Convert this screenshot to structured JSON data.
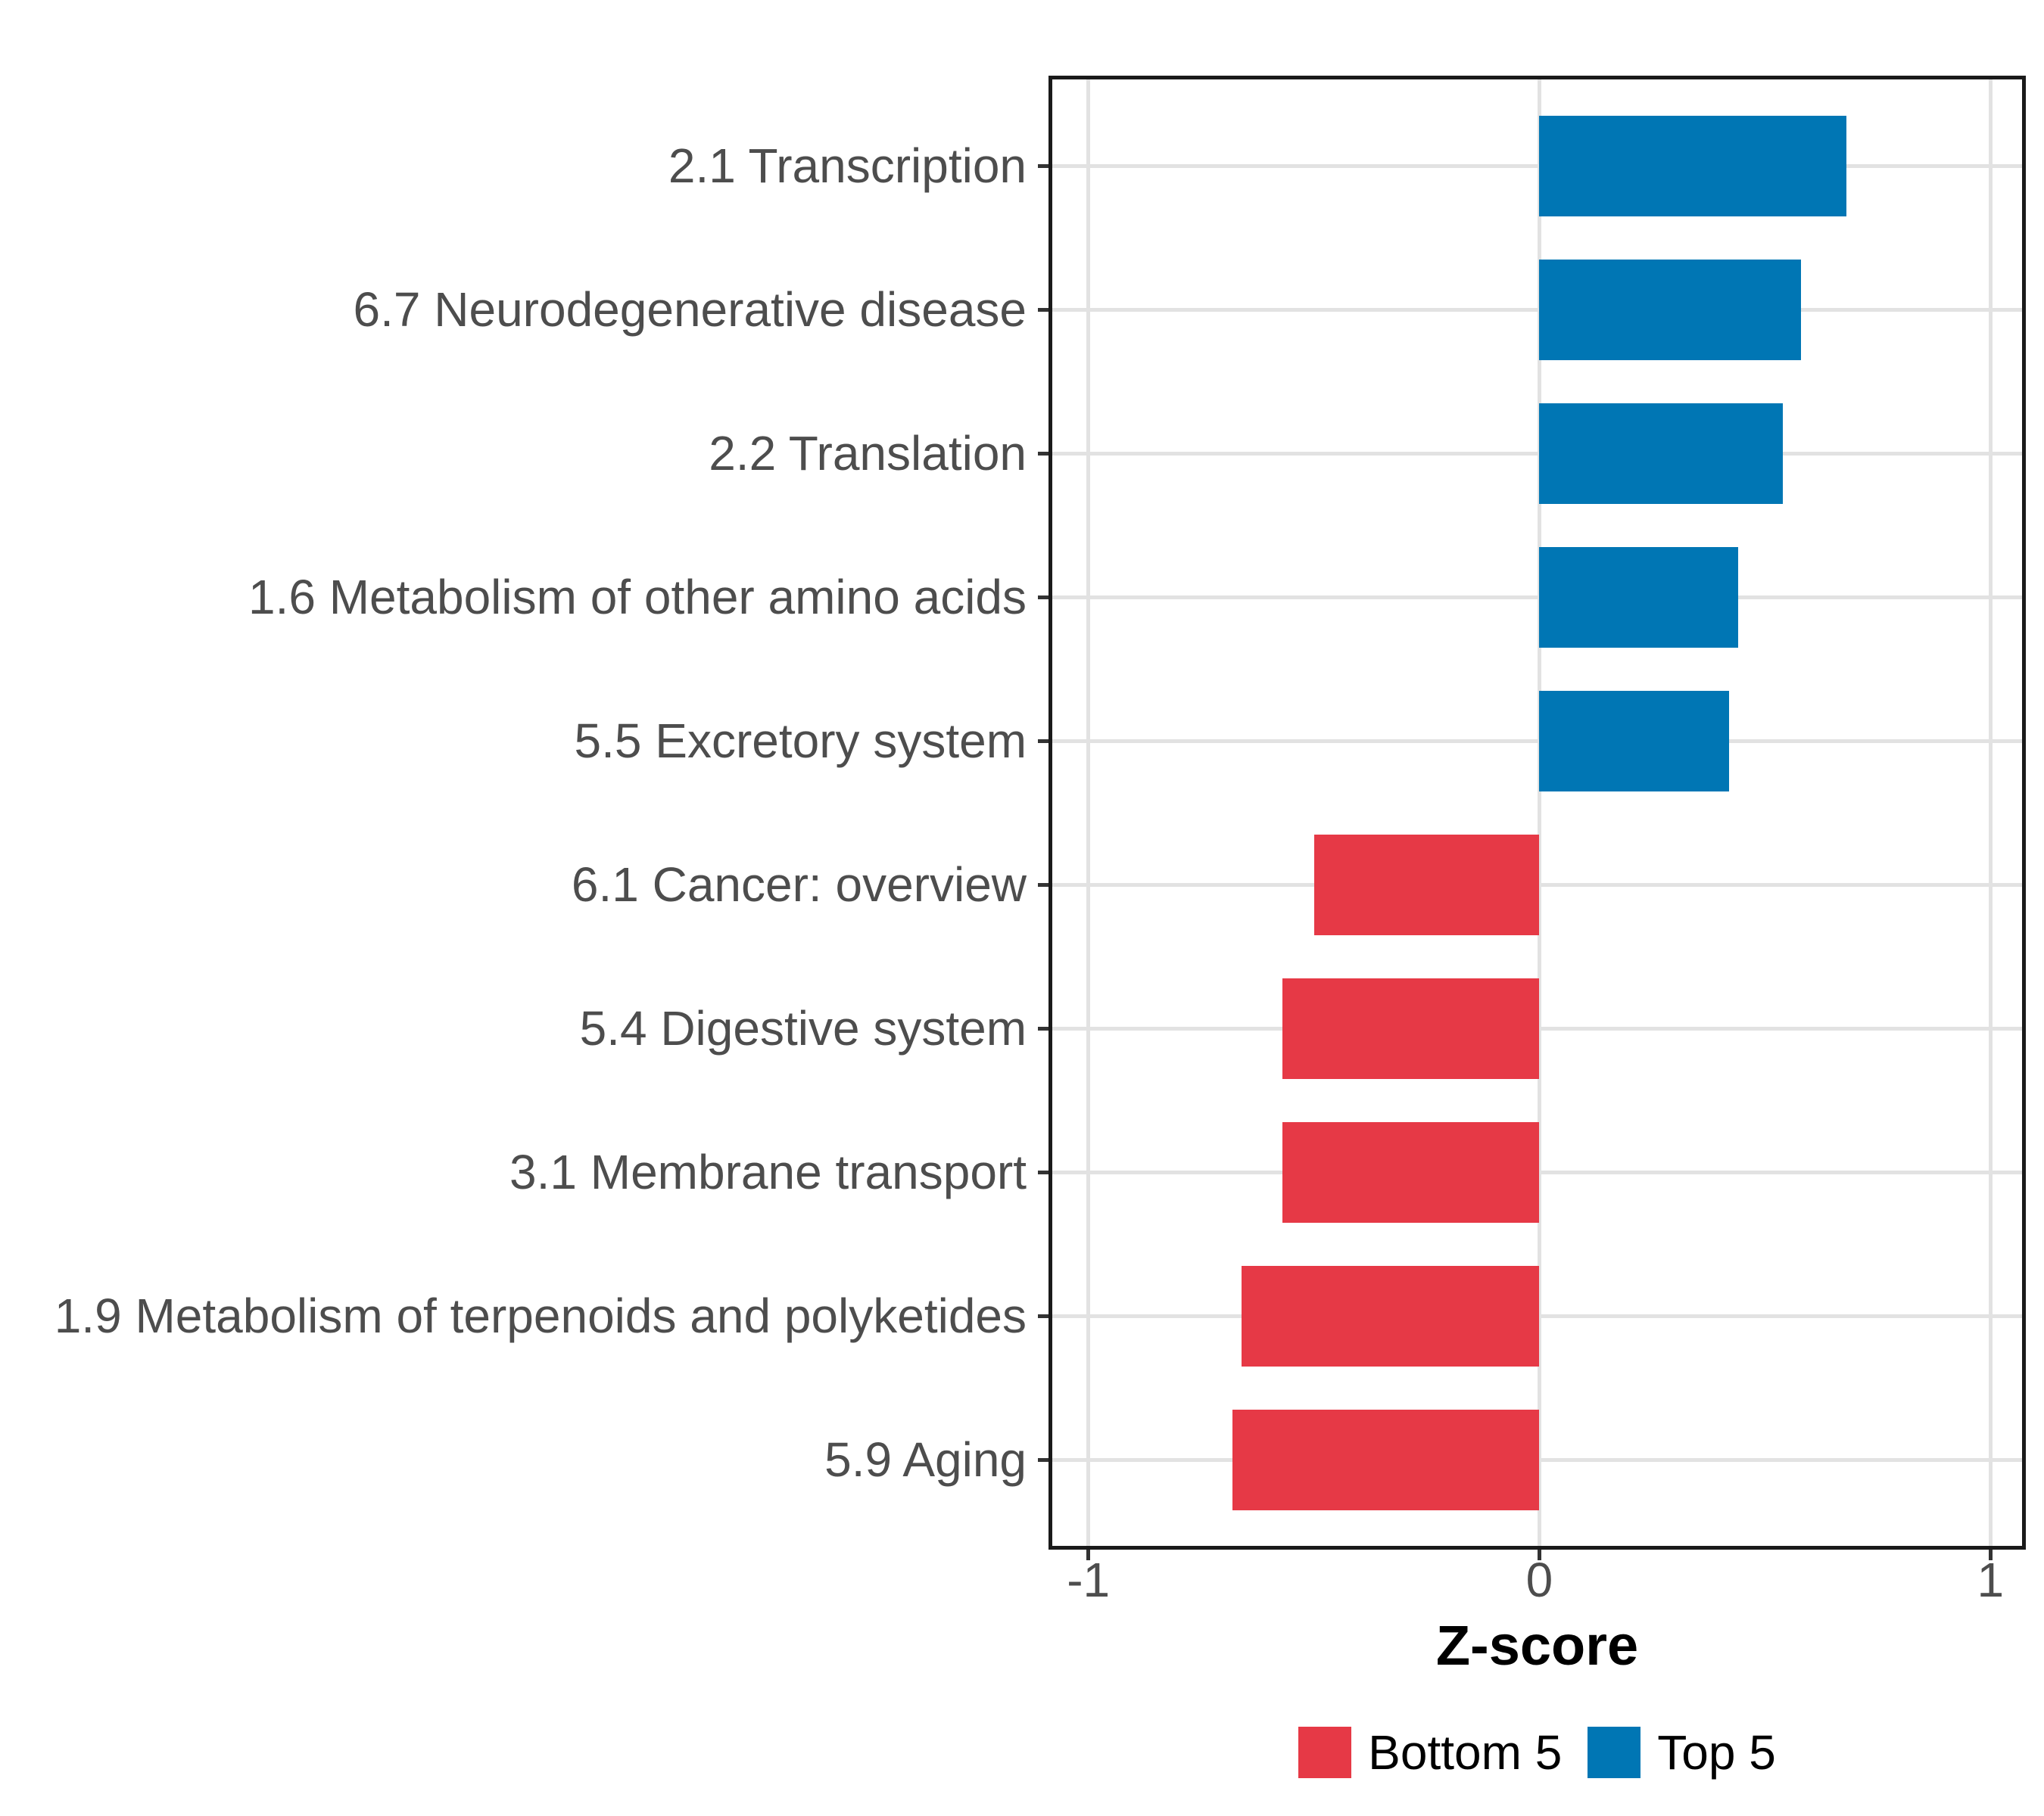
{
  "chart_data": {
    "type": "bar",
    "orientation": "horizontal",
    "title": "",
    "xlabel": "Z-score",
    "ylabel": "",
    "categories": [
      "2.1 Transcription",
      "6.7 Neurodegenerative disease",
      "2.2 Translation",
      "1.6 Metabolism of other amino acids",
      "5.5 Excretory system",
      "6.1 Cancer: overview",
      "5.4 Digestive system",
      "3.1 Membrane transport",
      "1.9 Metabolism of terpenoids and polyketides",
      "5.9 Aging"
    ],
    "values": [
      0.68,
      0.58,
      0.54,
      0.44,
      0.42,
      -0.5,
      -0.57,
      -0.57,
      -0.66,
      -0.68
    ],
    "groups": [
      "Top 5",
      "Top 5",
      "Top 5",
      "Top 5",
      "Top 5",
      "Bottom 5",
      "Bottom 5",
      "Bottom 5",
      "Bottom 5",
      "Bottom 5"
    ],
    "x_ticks": [
      {
        "label": "-1",
        "value": -1
      },
      {
        "label": "0",
        "value": 0
      },
      {
        "label": "1",
        "value": 1
      }
    ],
    "xlim": [
      -1.08,
      1.07
    ],
    "grid": true,
    "legend_position": "bottom",
    "legend": [
      {
        "label": "Bottom 5",
        "color": "#E63946"
      },
      {
        "label": "Top 5",
        "color": "#0076B4"
      }
    ],
    "colors": {
      "top5_bar": "#0076B4",
      "bottom5_bar": "#E63946",
      "grid": "#E2E2E2",
      "axis_text": "#4D4D4D",
      "panel_border": "#1A1A1A",
      "tick": "#333333"
    }
  }
}
